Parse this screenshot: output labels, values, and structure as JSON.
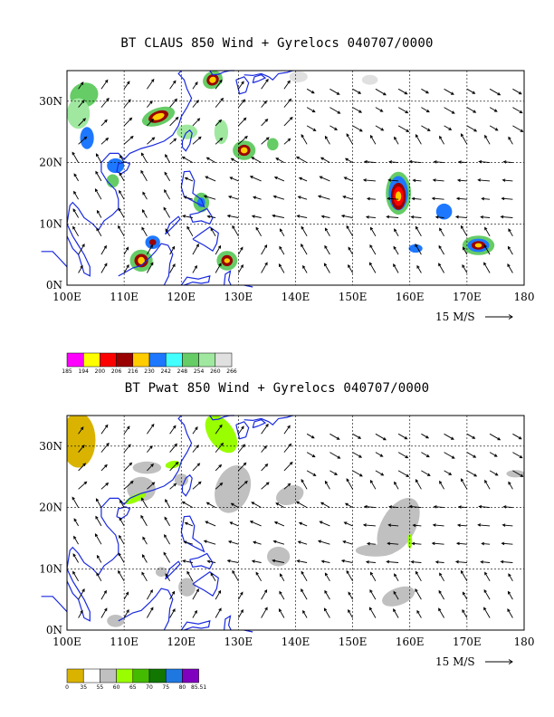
{
  "maps": [
    {
      "title": "BT CLAUS 850 Wind + Gyrelocs 040707/0000",
      "x_ticks": [
        "100E",
        "110E",
        "120E",
        "130E",
        "140E",
        "150E",
        "160E",
        "170E",
        "180"
      ],
      "y_ticks": [
        "30N",
        "20N",
        "10N",
        "0N"
      ],
      "ref_vector": "15 M/S",
      "legend": {
        "labels": [
          "185",
          "194",
          "200",
          "206",
          "216",
          "230",
          "242",
          "248",
          "254",
          "260",
          "266"
        ],
        "colors": [
          "#ff00ff",
          "#ffff00",
          "#ff0000",
          "#990000",
          "#ffcc00",
          "#1e78ff",
          "#44ffff",
          "#66cc66",
          "#a0e8a0",
          "#e0e0e0"
        ]
      }
    },
    {
      "title": "BT Pwat 850 Wind + Gyrelocs 040707/0000",
      "x_ticks": [
        "100E",
        "110E",
        "120E",
        "130E",
        "140E",
        "150E",
        "160E",
        "170E",
        "180"
      ],
      "y_ticks": [
        "30N",
        "20N",
        "10N",
        "0N"
      ],
      "ref_vector": "15 M/S",
      "legend": {
        "labels": [
          "0",
          "35",
          "55",
          "60",
          "65",
          "70",
          "75",
          "80",
          "85.51"
        ],
        "colors": [
          "#d9b300",
          "#ffffff",
          "#c0c0c0",
          "#99ff00",
          "#44bb00",
          "#117700",
          "#1e78e0",
          "#8000c0"
        ]
      }
    }
  ]
}
